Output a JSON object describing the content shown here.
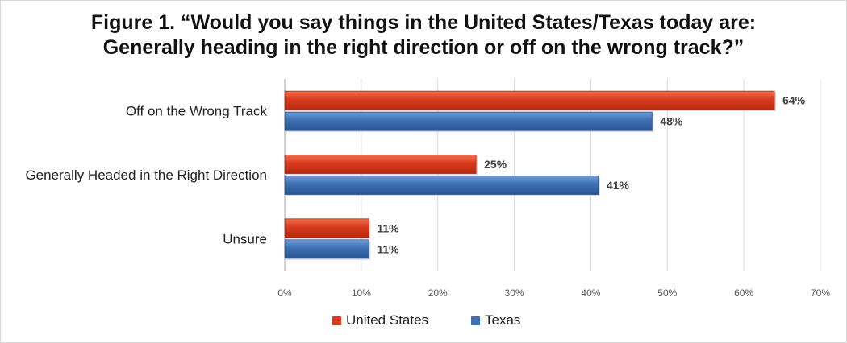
{
  "chart_data": {
    "type": "bar",
    "orientation": "horizontal",
    "title_lines": [
      "Figure 1. “Would you say things in the United States/Texas today are:",
      "Generally heading in the right direction or off on the wrong track?”"
    ],
    "categories": [
      "Off on the Wrong Track",
      "Generally Headed in the Right Direction",
      "Unsure"
    ],
    "series": [
      {
        "name": "United States",
        "values": [
          64,
          25,
          11
        ],
        "labels": [
          "64%",
          "25%",
          "11%"
        ],
        "color": "#d83b1e"
      },
      {
        "name": "Texas",
        "values": [
          48,
          41,
          11
        ],
        "labels": [
          "48%",
          "41%",
          "11%"
        ],
        "color": "#3d6fb3"
      }
    ],
    "xlim": [
      0,
      70
    ],
    "xticks": [
      0,
      10,
      20,
      30,
      40,
      50,
      60,
      70
    ],
    "xtick_labels": [
      "0%",
      "10%",
      "20%",
      "30%",
      "40%",
      "50%",
      "60%",
      "70%"
    ],
    "grid": true,
    "legend_position": "bottom"
  }
}
